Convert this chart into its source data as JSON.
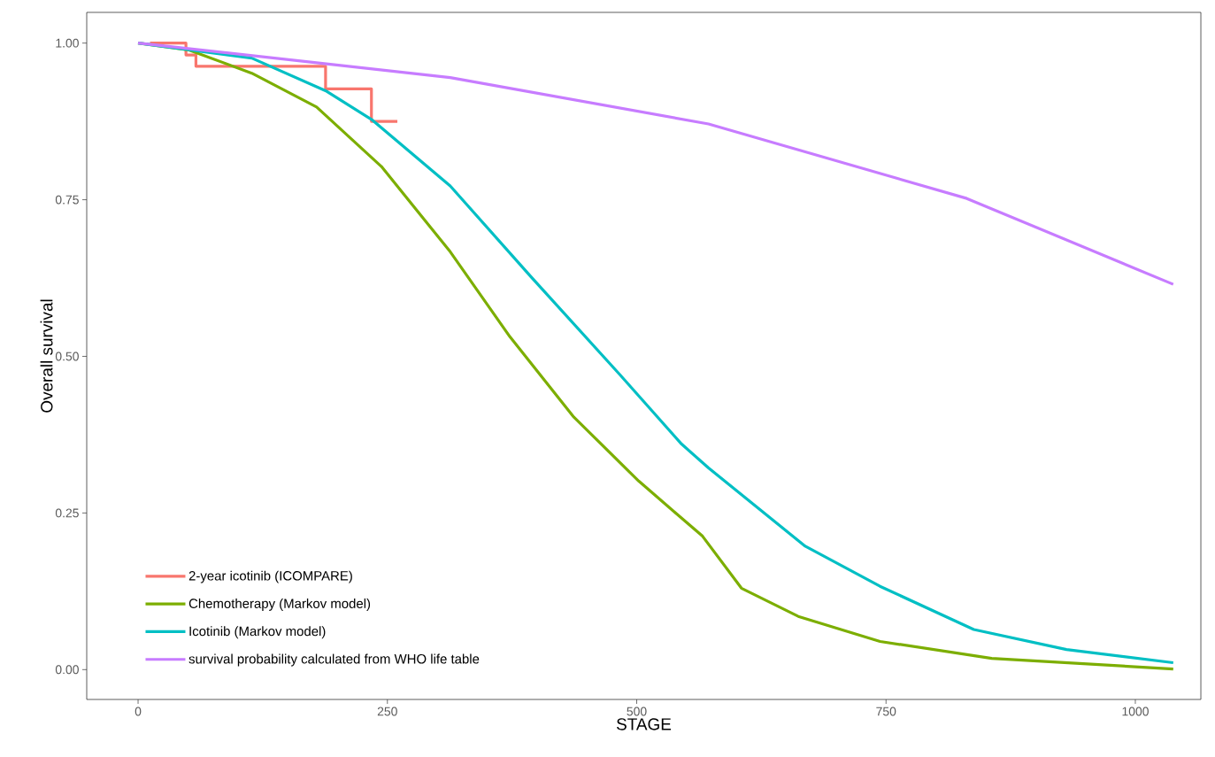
{
  "chart_data": {
    "type": "line",
    "xlabel": "STAGE",
    "ylabel": "Overall survival",
    "xlim": [
      -51.5,
      1065.7
    ],
    "ylim": [
      -0.0476,
      1.049
    ],
    "xticks": [
      0,
      250,
      500,
      750,
      1000
    ],
    "yticks": [
      {
        "value": 0,
        "label": "0.00"
      },
      {
        "value": 0.25,
        "label": "0.25"
      },
      {
        "value": 0.5,
        "label": "0.50"
      },
      {
        "value": 0.75,
        "label": "0.75"
      },
      {
        "value": 1,
        "label": "1.00"
      }
    ],
    "grid": false,
    "legend": "bottom left",
    "marker": "none",
    "line_style": "solid",
    "series": [
      {
        "name": "2-year icotinib (ICOMPARE)",
        "type": "step",
        "color": "#f8766d",
        "x": [
          12,
          48,
          58,
          188,
          234,
          260
        ],
        "values": [
          1.0,
          0.981,
          0.963,
          0.927,
          0.875,
          0.875
        ]
      },
      {
        "name": "Chemotherapy (Markov model)",
        "color": "#7cae00",
        "x": [
          0,
          51,
          114,
          179,
          244,
          313,
          373,
          437,
          502,
          566,
          605,
          662,
          744,
          856,
          1038
        ],
        "values": [
          1.0,
          0.989,
          0.952,
          0.898,
          0.803,
          0.667,
          0.531,
          0.403,
          0.301,
          0.213,
          0.13,
          0.085,
          0.045,
          0.018,
          0.001
        ]
      },
      {
        "name": "Icotinib (Markov model)",
        "color": "#00bfc4",
        "x": [
          0,
          114,
          188,
          235,
          313,
          394,
          483,
          545,
          572,
          669,
          744,
          838,
          931,
          1038
        ],
        "values": [
          1.0,
          0.976,
          0.924,
          0.877,
          0.772,
          0.627,
          0.471,
          0.36,
          0.322,
          0.197,
          0.133,
          0.064,
          0.032,
          0.011
        ]
      },
      {
        "name": "survival probability calculated from WHO life table",
        "color": "#c77cff",
        "x": [
          0,
          313,
          572,
          831,
          1038
        ],
        "values": [
          1.0,
          0.945,
          0.871,
          0.752,
          0.615
        ]
      }
    ]
  }
}
